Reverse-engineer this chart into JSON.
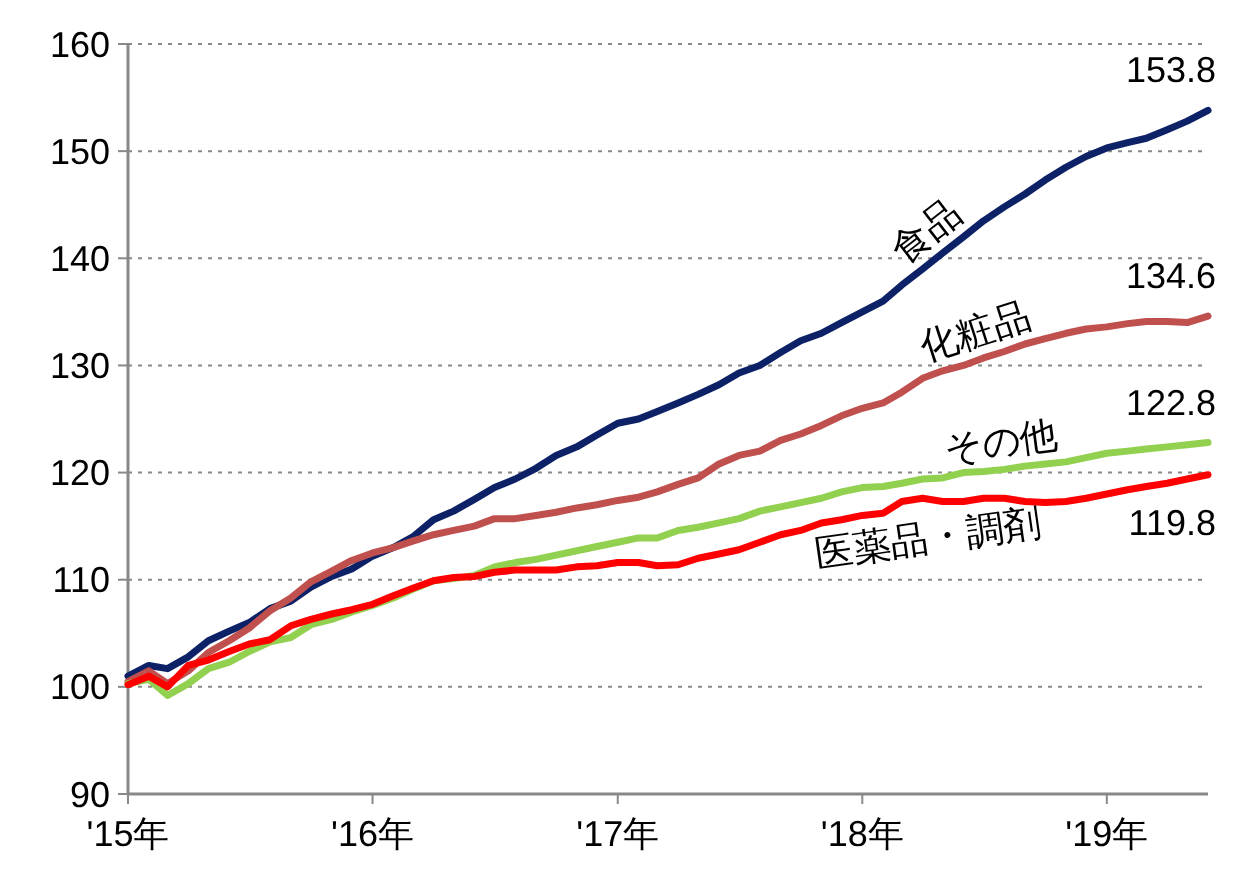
{
  "chart_data": {
    "type": "line",
    "x": [
      "2015-01",
      "2015-02",
      "2015-03",
      "2015-04",
      "2015-05",
      "2015-06",
      "2015-07",
      "2015-08",
      "2015-09",
      "2015-10",
      "2015-11",
      "2015-12",
      "2016-01",
      "2016-02",
      "2016-03",
      "2016-04",
      "2016-05",
      "2016-06",
      "2016-07",
      "2016-08",
      "2016-09",
      "2016-10",
      "2016-11",
      "2016-12",
      "2017-01",
      "2017-02",
      "2017-03",
      "2017-04",
      "2017-05",
      "2017-06",
      "2017-07",
      "2017-08",
      "2017-09",
      "2017-10",
      "2017-11",
      "2017-12",
      "2018-01",
      "2018-02",
      "2018-03",
      "2018-04",
      "2018-05",
      "2018-06",
      "2018-07",
      "2018-08",
      "2018-09",
      "2018-10",
      "2018-11",
      "2018-12",
      "2019-01",
      "2019-02",
      "2019-03",
      "2019-04",
      "2019-05",
      "2019-06"
    ],
    "xlim": [
      "2015-01",
      "2019-06"
    ],
    "xticks": [
      {
        "value": "2015-01",
        "label": "'15年"
      },
      {
        "value": "2016-01",
        "label": "'16年"
      },
      {
        "value": "2017-01",
        "label": "'17年"
      },
      {
        "value": "2018-01",
        "label": "'18年"
      },
      {
        "value": "2019-01",
        "label": "'19年"
      }
    ],
    "ylim": [
      90,
      160
    ],
    "yticks": [
      90,
      100,
      110,
      120,
      130,
      140,
      150,
      160
    ],
    "grid": "y",
    "marker": "none",
    "line_style": "solid",
    "series": [
      {
        "name": "食品",
        "color": "#0d2167",
        "values": [
          101,
          102,
          101.7,
          102.8,
          104.3,
          105.2,
          106,
          107.3,
          108,
          109.3,
          110.3,
          111,
          112.2,
          113,
          114,
          115.6,
          116.4,
          117.5,
          118.6,
          119.4,
          120.4,
          121.6,
          122.4,
          123.5,
          124.6,
          125,
          125.7,
          126.5,
          127.3,
          128.2,
          129.3,
          130,
          131.2,
          132.3,
          133,
          134,
          135,
          136,
          137.5,
          139,
          140.5,
          142,
          143.5,
          144.8,
          146,
          147.3,
          148.5,
          149.5,
          150.3,
          150.8,
          151.2,
          152,
          152.8,
          153.8
        ],
        "value_labels": [
          null,
          null,
          null,
          null,
          null,
          null,
          null,
          null,
          null,
          null,
          null,
          null,
          null,
          null,
          null,
          null,
          null,
          null,
          null,
          null,
          null,
          null,
          null,
          null,
          null,
          null,
          null,
          null,
          null,
          null,
          null,
          null,
          null,
          null,
          null,
          null,
          null,
          null,
          null,
          null,
          null,
          null,
          null,
          null,
          null,
          null,
          null,
          null,
          null,
          null,
          null,
          null,
          null,
          "153.8"
        ]
      },
      {
        "name": "化粧品",
        "color": "#c0504d",
        "values": [
          100.5,
          101.5,
          100.3,
          101.5,
          103.2,
          104.3,
          105.5,
          107.1,
          108.3,
          109.8,
          110.8,
          111.8,
          112.5,
          113,
          113.6,
          114.2,
          114.6,
          115,
          115.7,
          115.7,
          116,
          116.3,
          116.7,
          117,
          117.4,
          117.7,
          118.2,
          118.9,
          119.5,
          120.8,
          121.6,
          122,
          123,
          123.6,
          124.4,
          125.3,
          126,
          126.5,
          127.5,
          128.8,
          129.5,
          130,
          130.7,
          131.3,
          132,
          132.5,
          133,
          133.4,
          133.6,
          133.9,
          134.1,
          134.1,
          134,
          134.6
        ],
        "value_labels": [
          null,
          null,
          null,
          null,
          null,
          null,
          null,
          null,
          null,
          null,
          null,
          null,
          null,
          null,
          null,
          null,
          null,
          null,
          null,
          null,
          null,
          null,
          null,
          null,
          null,
          null,
          null,
          null,
          null,
          null,
          null,
          null,
          null,
          null,
          null,
          null,
          null,
          null,
          null,
          null,
          null,
          null,
          null,
          null,
          null,
          null,
          null,
          null,
          null,
          null,
          null,
          null,
          null,
          "134.6"
        ]
      },
      {
        "name": "その他",
        "color": "#92d050",
        "values": [
          100.3,
          100.7,
          99.2,
          100.3,
          101.7,
          102.3,
          103.3,
          104.2,
          104.6,
          105.8,
          106.3,
          107,
          107.6,
          108.3,
          109.1,
          109.9,
          110.1,
          110.4,
          111.2,
          111.6,
          111.9,
          112.3,
          112.7,
          113.1,
          113.5,
          113.9,
          113.9,
          114.6,
          114.9,
          115.3,
          115.7,
          116.4,
          116.8,
          117.2,
          117.6,
          118.2,
          118.6,
          118.7,
          119,
          119.4,
          119.5,
          120,
          120.1,
          120.3,
          120.6,
          120.8,
          121,
          121.4,
          121.8,
          122,
          122.2,
          122.4,
          122.6,
          122.8
        ],
        "value_labels": [
          null,
          null,
          null,
          null,
          null,
          null,
          null,
          null,
          null,
          null,
          null,
          null,
          null,
          null,
          null,
          null,
          null,
          null,
          null,
          null,
          null,
          null,
          null,
          null,
          null,
          null,
          null,
          null,
          null,
          null,
          null,
          null,
          null,
          null,
          null,
          null,
          null,
          null,
          null,
          null,
          null,
          null,
          null,
          null,
          null,
          null,
          null,
          null,
          null,
          null,
          null,
          null,
          null,
          "122.8"
        ]
      },
      {
        "name": "医薬品・調剤",
        "color": "#ff0000",
        "values": [
          100.2,
          101,
          100,
          102,
          102.5,
          103.3,
          104,
          104.4,
          105.7,
          106.3,
          106.8,
          107.2,
          107.7,
          108.5,
          109.2,
          109.9,
          110.2,
          110.3,
          110.7,
          110.9,
          110.9,
          110.9,
          111.2,
          111.3,
          111.6,
          111.6,
          111.3,
          111.4,
          112,
          112.4,
          112.8,
          113.5,
          114.2,
          114.6,
          115.3,
          115.6,
          116,
          116.2,
          117.3,
          117.6,
          117.3,
          117.3,
          117.6,
          117.6,
          117.3,
          117.2,
          117.3,
          117.6,
          118,
          118.4,
          118.7,
          119,
          119.4,
          119.8
        ],
        "value_labels": [
          null,
          null,
          null,
          null,
          null,
          null,
          null,
          null,
          null,
          null,
          null,
          null,
          null,
          null,
          null,
          null,
          null,
          null,
          null,
          null,
          null,
          null,
          null,
          null,
          null,
          null,
          null,
          null,
          null,
          null,
          null,
          null,
          null,
          null,
          null,
          null,
          null,
          null,
          null,
          null,
          null,
          null,
          null,
          null,
          null,
          null,
          null,
          null,
          null,
          null,
          null,
          null,
          null,
          "119.8"
        ]
      }
    ]
  }
}
